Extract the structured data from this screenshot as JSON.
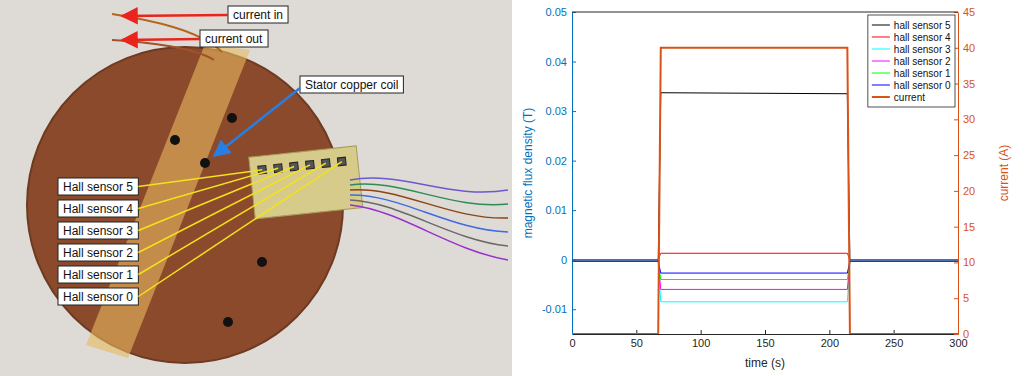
{
  "chart_data": {
    "type": "line",
    "xlabel": "time (s)",
    "ylabel": "magnetic flux density (T)",
    "y2label": "current (A)",
    "x": [
      0,
      67,
      69,
      214,
      216,
      300
    ],
    "xlim": [
      0,
      300
    ],
    "xticks": [
      0,
      50,
      100,
      150,
      200,
      250,
      300
    ],
    "ylim": [
      -0.015,
      0.05
    ],
    "yticks": [
      -0.01,
      0,
      0.01,
      0.02,
      0.03,
      0.04,
      0.05
    ],
    "y2lim": [
      0,
      45
    ],
    "y2ticks": [
      0,
      5,
      10,
      15,
      20,
      25,
      30,
      35,
      40,
      45
    ],
    "legend": "northeast",
    "series": [
      {
        "name": "hall sensor 5",
        "color": "#000000",
        "values": [
          -0.0003,
          -0.0003,
          0.0337,
          0.0335,
          -0.0003,
          -0.0003
        ]
      },
      {
        "name": "hall sensor 4",
        "color": "#ff0000",
        "values": [
          0,
          0,
          0.0013,
          0.0013,
          0,
          0
        ]
      },
      {
        "name": "hall sensor 3",
        "color": "#00ffff",
        "values": [
          -0.0003,
          -0.0003,
          -0.0085,
          -0.0085,
          -0.0003,
          -0.0003
        ]
      },
      {
        "name": "hall sensor 2",
        "color": "#ff00ff",
        "values": [
          -0.0003,
          -0.0003,
          -0.006,
          -0.006,
          -0.0003,
          -0.0003
        ]
      },
      {
        "name": "hall sensor 1",
        "color": "#00ff00",
        "values": [
          -0.0003,
          -0.0003,
          -0.004,
          -0.004,
          -0.0003,
          -0.0003
        ]
      },
      {
        "name": "hall sensor 0",
        "color": "#0000ff",
        "values": [
          -0.0003,
          -0.0003,
          -0.0027,
          -0.0027,
          -0.0003,
          -0.0003
        ]
      },
      {
        "name": "current",
        "color": "#d95319",
        "axis": "y2",
        "values": [
          0,
          0,
          40,
          40,
          0,
          0
        ]
      }
    ]
  },
  "photo": {
    "current_labels": [
      "current in",
      "current out"
    ],
    "coil_label": "Stator copper coil",
    "sensor_labels": [
      "Hall sensor 5",
      "Hall sensor 4",
      "Hall sensor 3",
      "Hall sensor 2",
      "Hall sensor 1",
      "Hall sensor 0"
    ]
  }
}
